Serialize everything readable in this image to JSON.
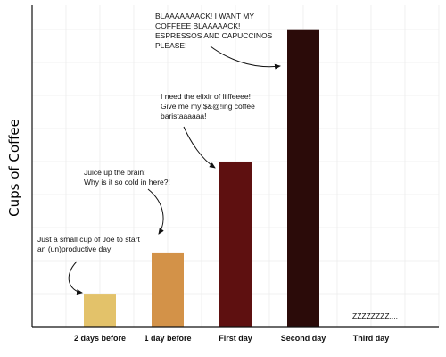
{
  "chart_data": {
    "type": "bar",
    "title": "",
    "xlabel": "",
    "ylabel": "Cups of Coffee",
    "categories": [
      "2 days before",
      "1 day before",
      "First day",
      "Second day",
      "Third day"
    ],
    "values": [
      1,
      2.25,
      5,
      9,
      0
    ],
    "colors": [
      "#E3C26A",
      "#D39248",
      "#5E1010",
      "#2B0B09",
      "#FFFFFF"
    ],
    "ylim": [
      0,
      9.75
    ],
    "grid": true,
    "annotations": [
      {
        "lines": [
          "Just a small cup of Joe to start",
          "an (un)productive day!"
        ]
      },
      {
        "lines": [
          "Juice up the brain!",
          "Why is it so cold in here?!"
        ]
      },
      {
        "lines": [
          "I need the elixir of liiffeeee!",
          "Give me my $&@!ing coffee",
          "baristaaaaaa!"
        ]
      },
      {
        "lines": [
          "BLAAAAAAACK! I WANT MY",
          "COFFEEE BLAAAAACK!",
          "ESPRESSOS AND CAPUCCINOS",
          "PLEASE!"
        ]
      },
      {
        "lines": [
          "ZZZZZZZZ...."
        ]
      }
    ]
  }
}
